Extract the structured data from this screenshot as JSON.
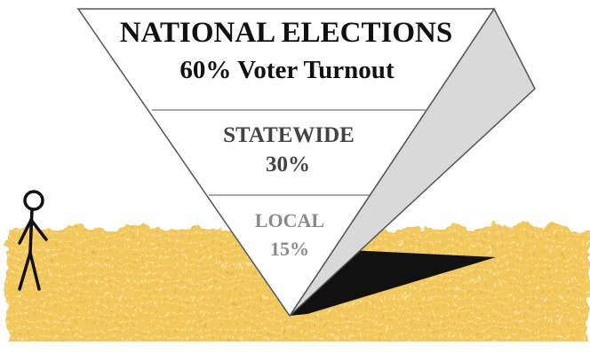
{
  "diagram": {
    "levels": [
      {
        "name": "NATIONAL ELECTIONS",
        "turnout": "60% Voter Turnout"
      },
      {
        "name": "STATEWIDE",
        "turnout": "30%"
      },
      {
        "name": "LOCAL",
        "turnout": "15%"
      }
    ]
  },
  "colors": {
    "ground": "#f3c95d",
    "ground_light": "#f8dd95",
    "shadow": "#111111",
    "side_face": "#d9d9d9",
    "front_face": "#ffffff",
    "outline": "#555555",
    "text_dark": "#111111",
    "text_mid": "#444444",
    "text_light": "#8a8a8a"
  }
}
